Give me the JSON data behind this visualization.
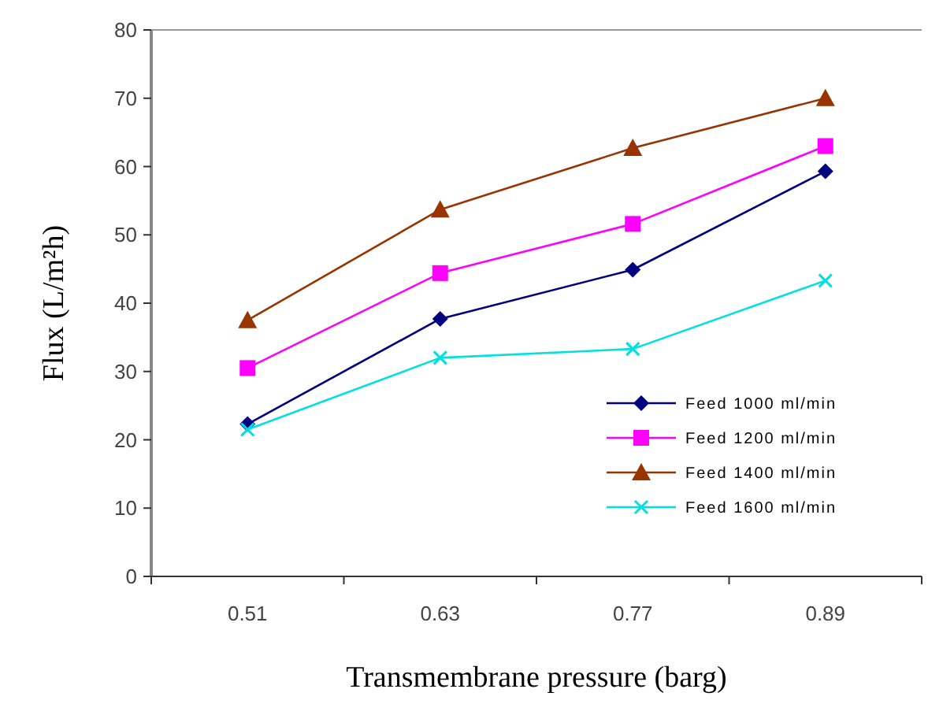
{
  "chart_data": {
    "type": "line",
    "xlabel": "Transmembrane pressure (barg)",
    "ylabel": "Flux (L/m²h)",
    "categories": [
      "0.51",
      "0.63",
      "0.77",
      "0.89"
    ],
    "ylim": [
      0,
      80
    ],
    "yticks": [
      0,
      10,
      20,
      30,
      40,
      50,
      60,
      70,
      80
    ],
    "grid": false,
    "legend": "bottom right",
    "series": [
      {
        "name": "Feed 1000 ml/min",
        "color": "#000080",
        "marker": "diamond",
        "values": [
          22.3,
          37.7,
          44.9,
          59.3
        ]
      },
      {
        "name": "Feed 1200 ml/min",
        "color": "#ff00ff",
        "marker": "square",
        "values": [
          30.5,
          44.4,
          51.6,
          63
        ]
      },
      {
        "name": "Feed 1400 ml/min",
        "color": "#993300",
        "marker": "triangle",
        "values": [
          37.5,
          53.7,
          62.7,
          70
        ]
      },
      {
        "name": "Feed 1600 ml/min",
        "color": "#00e0e0",
        "marker": "cross",
        "values": [
          21.5,
          32,
          33.3,
          43.3
        ]
      }
    ]
  }
}
